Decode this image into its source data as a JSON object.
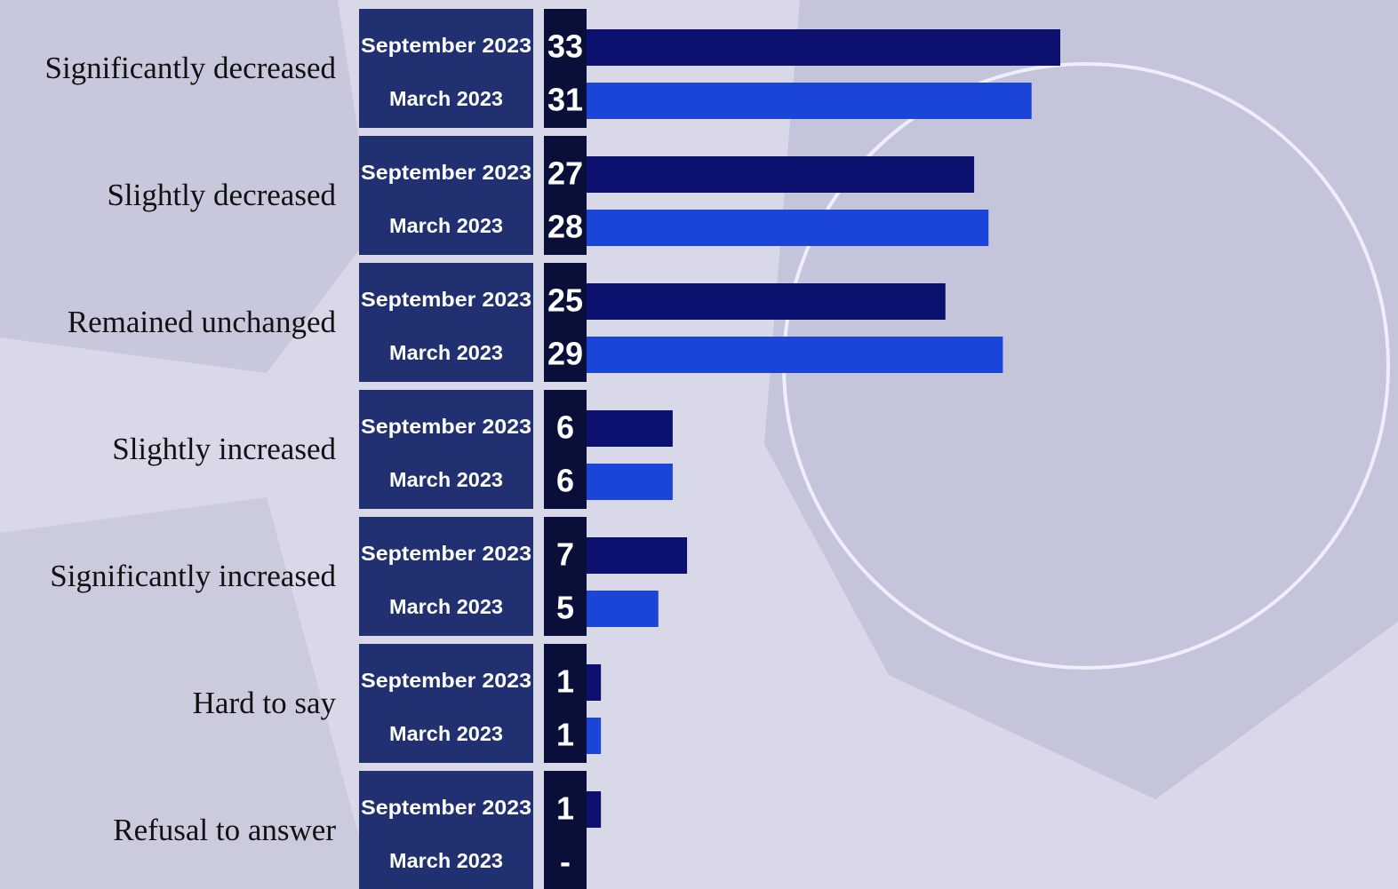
{
  "chart_data": {
    "type": "bar",
    "categories": [
      "Significantly decreased",
      "Slightly decreased",
      "Remained unchanged",
      "Slightly increased",
      "Significantly increased",
      "Hard to say",
      "Refusal to answer"
    ],
    "series": [
      {
        "name": "September 2023",
        "color": "#0c1170",
        "values": [
          33,
          27,
          25,
          6,
          7,
          1,
          1
        ]
      },
      {
        "name": "March 2023",
        "color": "#1b45d9",
        "values": [
          31,
          28,
          29,
          6,
          5,
          1,
          null
        ],
        "value_labels": [
          "31",
          "28",
          "29",
          "6",
          "5",
          "1",
          "-"
        ]
      }
    ]
  }
}
